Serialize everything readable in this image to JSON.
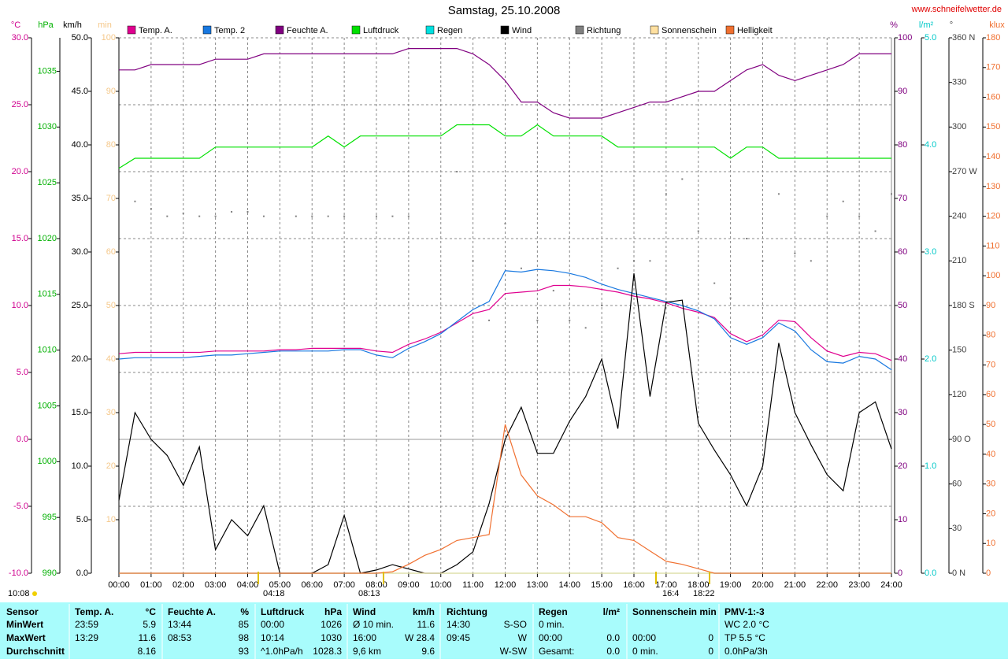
{
  "chart_data": {
    "type": "line",
    "title": "Samstag, 25.10.2008",
    "source": "www.schneifelwetter.de",
    "x": [
      0,
      0.5,
      1,
      1.5,
      2,
      2.5,
      3,
      3.5,
      4,
      4.5,
      5,
      5.5,
      6,
      6.5,
      7,
      7.5,
      8,
      8.5,
      9,
      9.5,
      10,
      10.5,
      11,
      11.5,
      12,
      12.5,
      13,
      13.5,
      14,
      14.5,
      15,
      15.5,
      16,
      16.5,
      17,
      17.5,
      18,
      18.5,
      19,
      19.5,
      20,
      20.5,
      21,
      21.5,
      22,
      22.5,
      23,
      23.5,
      24
    ],
    "xlim": [
      0,
      24
    ],
    "xticks": [
      {
        "value": 0,
        "label": "00:00"
      },
      {
        "value": 1,
        "label": "01:00"
      },
      {
        "value": 2,
        "label": "02:00"
      },
      {
        "value": 3,
        "label": "03:00"
      },
      {
        "value": 4,
        "label": "04:00"
      },
      {
        "value": 5,
        "label": "05:00"
      },
      {
        "value": 6,
        "label": "06:00"
      },
      {
        "value": 7,
        "label": "07:00"
      },
      {
        "value": 8,
        "label": "08:00"
      },
      {
        "value": 9,
        "label": "09:00"
      },
      {
        "value": 10,
        "label": "10:00"
      },
      {
        "value": 11,
        "label": "11:00"
      },
      {
        "value": 12,
        "label": "12:00"
      },
      {
        "value": 13,
        "label": "13:00"
      },
      {
        "value": 14,
        "label": "14:00"
      },
      {
        "value": 15,
        "label": "15:00"
      },
      {
        "value": 16,
        "label": "16:00"
      },
      {
        "value": 17,
        "label": "17:00"
      },
      {
        "value": 18,
        "label": "18:00"
      },
      {
        "value": 19,
        "label": "19:00"
      },
      {
        "value": 20,
        "label": "20:00"
      },
      {
        "value": 21,
        "label": "21:00"
      },
      {
        "value": 22,
        "label": "22:00"
      },
      {
        "value": 23,
        "label": "23:00"
      },
      {
        "value": 24,
        "label": "24:00"
      }
    ],
    "grid": true,
    "axes": [
      {
        "label": "°C",
        "color": "#d0008f",
        "lim": [
          -10,
          30
        ],
        "ticks": [
          {
            "value": -10,
            "label": "-10.0"
          },
          {
            "value": -5,
            "label": "-5.0"
          },
          {
            "value": 0,
            "label": "0.0"
          },
          {
            "value": 5,
            "label": "5.0"
          },
          {
            "value": 10,
            "label": "10.0"
          },
          {
            "value": 15,
            "label": "15.0"
          },
          {
            "value": 20,
            "label": "20.0"
          },
          {
            "value": 25,
            "label": "25.0"
          },
          {
            "value": 30,
            "label": "30.0"
          }
        ]
      },
      {
        "label": "hPa",
        "color": "#00b000",
        "lim": [
          990,
          1038
        ],
        "ticks": [
          990,
          995,
          1000,
          1005,
          1010,
          1015,
          1020,
          1025,
          1030,
          1035
        ]
      },
      {
        "label": "km/h",
        "color": "#000000",
        "lim": [
          0,
          50
        ],
        "ticks": [
          {
            "value": 0,
            "label": "0.0"
          },
          {
            "value": 5,
            "label": "5.0"
          },
          {
            "value": 10,
            "label": "10.0"
          },
          {
            "value": 15,
            "label": "15.0"
          },
          {
            "value": 20,
            "label": "20.0"
          },
          {
            "value": 25,
            "label": "25.0"
          },
          {
            "value": 30,
            "label": "30.0"
          },
          {
            "value": 35,
            "label": "35.0"
          },
          {
            "value": 40,
            "label": "40.0"
          },
          {
            "value": 45,
            "label": "45.0"
          },
          {
            "value": 50,
            "label": "50.0"
          }
        ]
      },
      {
        "label": "min",
        "color": "#f5c88a",
        "lim": [
          0,
          100
        ],
        "ticks": [
          10,
          20,
          30,
          40,
          50,
          60,
          70,
          80,
          90,
          100
        ]
      },
      {
        "label": "%",
        "color": "#800080",
        "lim": [
          0,
          100
        ],
        "ticks": [
          0,
          10,
          20,
          30,
          40,
          50,
          60,
          70,
          80,
          90,
          100
        ]
      },
      {
        "label": "l/m²",
        "color": "#00c8c8",
        "lim": [
          0,
          5
        ],
        "ticks": [
          {
            "value": 0,
            "label": "0.0"
          },
          {
            "value": 1,
            "label": "1.0"
          },
          {
            "value": 2,
            "label": "2.0"
          },
          {
            "value": 3,
            "label": "3.0"
          },
          {
            "value": 4,
            "label": "4.0"
          },
          {
            "value": 5,
            "label": "5.0"
          }
        ]
      },
      {
        "label": "°",
        "color": "#404040",
        "lim": [
          0,
          360
        ],
        "ticks": [
          {
            "value": 0,
            "label": "0   N"
          },
          30,
          60,
          {
            "value": 90,
            "label": "90   O"
          },
          120,
          150,
          {
            "value": 180,
            "label": "180 S"
          },
          210,
          240,
          {
            "value": 270,
            "label": "270 W"
          },
          300,
          330,
          {
            "value": 360,
            "label": "360 N"
          }
        ]
      },
      {
        "label": "klux",
        "color": "#f07030",
        "lim": [
          0,
          180
        ],
        "ticks": [
          0,
          10,
          20,
          30,
          40,
          50,
          60,
          70,
          80,
          90,
          100,
          110,
          120,
          130,
          140,
          150,
          160,
          170,
          180
        ]
      }
    ],
    "series": [
      {
        "name": "Temp. A.",
        "color": "#e0008f",
        "axis": 0,
        "style": "line",
        "values": [
          6.4,
          6.5,
          6.5,
          6.5,
          6.5,
          6.5,
          6.6,
          6.6,
          6.6,
          6.6,
          6.7,
          6.7,
          6.8,
          6.8,
          6.8,
          6.8,
          6.6,
          6.5,
          7.1,
          7.5,
          8.0,
          8.7,
          9.4,
          9.7,
          10.9,
          11.0,
          11.1,
          11.5,
          11.5,
          11.4,
          11.2,
          11.0,
          10.7,
          10.5,
          10.2,
          9.8,
          9.5,
          9.1,
          7.9,
          7.3,
          7.8,
          8.9,
          8.8,
          7.6,
          6.6,
          6.2,
          6.5,
          6.4,
          5.9
        ]
      },
      {
        "name": "Temp. 2",
        "color": "#1878e0",
        "axis": 0,
        "style": "line",
        "values": [
          6.0,
          6.1,
          6.1,
          6.1,
          6.1,
          6.2,
          6.3,
          6.3,
          6.4,
          6.5,
          6.6,
          6.6,
          6.6,
          6.6,
          6.7,
          6.7,
          6.3,
          6.1,
          6.8,
          7.3,
          7.9,
          8.8,
          9.7,
          10.3,
          12.6,
          12.5,
          12.7,
          12.6,
          12.4,
          12.1,
          11.6,
          11.2,
          10.9,
          10.6,
          10.3,
          10.0,
          9.6,
          9.0,
          7.6,
          7.1,
          7.6,
          8.7,
          8.1,
          6.7,
          5.8,
          5.7,
          6.2,
          6.0,
          5.2
        ]
      },
      {
        "name": "Feuchte A.",
        "color": "#800080",
        "axis": 4,
        "style": "line",
        "values": [
          94,
          94,
          95,
          95,
          95,
          95,
          96,
          96,
          96,
          97,
          97,
          97,
          97,
          97,
          97,
          97,
          97,
          97,
          98,
          98,
          98,
          98,
          97,
          95,
          92,
          88,
          88,
          86,
          85,
          85,
          85,
          86,
          87,
          88,
          88,
          89,
          90,
          90,
          92,
          94,
          95,
          93,
          92,
          93,
          94,
          95,
          97,
          97,
          97
        ]
      },
      {
        "name": "Luftdruck",
        "color": "#00e000",
        "axis": 1,
        "style": "line",
        "values": [
          1026.3,
          1027.2,
          1027.2,
          1027.2,
          1027.2,
          1027.2,
          1028.2,
          1028.2,
          1028.2,
          1028.2,
          1028.2,
          1028.2,
          1028.2,
          1029.2,
          1028.2,
          1029.2,
          1029.2,
          1029.2,
          1029.2,
          1029.2,
          1029.2,
          1030.2,
          1030.2,
          1030.2,
          1029.2,
          1029.2,
          1030.2,
          1029.2,
          1029.2,
          1029.2,
          1029.2,
          1028.2,
          1028.2,
          1028.2,
          1028.2,
          1028.2,
          1028.2,
          1028.2,
          1027.2,
          1028.2,
          1028.2,
          1027.2,
          1027.2,
          1027.2,
          1027.2,
          1027.2,
          1027.2,
          1027.2,
          1027.2
        ]
      },
      {
        "name": "Regen",
        "color": "#00e0e0",
        "axis": 5,
        "style": "line",
        "values": [
          0,
          0,
          0,
          0,
          0,
          0,
          0,
          0,
          0,
          0,
          0,
          0,
          0,
          0,
          0,
          0,
          0,
          0,
          0,
          0,
          0,
          0,
          0,
          0,
          0,
          0,
          0,
          0,
          0,
          0,
          0,
          0,
          0,
          0,
          0,
          0,
          0,
          0,
          0,
          0,
          0,
          0,
          0,
          0,
          0,
          0,
          0,
          0,
          0
        ]
      },
      {
        "name": "Wind",
        "color": "#000000",
        "axis": 2,
        "style": "line",
        "values": [
          6.8,
          15.0,
          12.5,
          11.0,
          8.2,
          11.8,
          2.2,
          5.0,
          3.5,
          6.3,
          0,
          0,
          0,
          0.8,
          5.4,
          0,
          0.3,
          0.8,
          0.4,
          0,
          0,
          0.8,
          2.0,
          6.5,
          12.5,
          15.5,
          11.2,
          11.2,
          14.2,
          16.5,
          20.0,
          13.5,
          28.0,
          16.5,
          25.3,
          25.5,
          14.0,
          11.5,
          9.2,
          6.3,
          10.0,
          21.5,
          15.0,
          12.0,
          9.2,
          7.7,
          15.0,
          16.0,
          11.6
        ]
      },
      {
        "name": "Richtung",
        "color": "#808080",
        "axis": 6,
        "style": "dots",
        "values": [
          245,
          250,
          245,
          240,
          242,
          240,
          240,
          243,
          243,
          240,
          null,
          240,
          240,
          240,
          240,
          null,
          240,
          240,
          240,
          null,
          null,
          270,
          210,
          170,
          235,
          205,
          170,
          190,
          170,
          165,
          180,
          205,
          210,
          210,
          255,
          265,
          230,
          195,
          185,
          225,
          210,
          255,
          215,
          210,
          240,
          250,
          240,
          230,
          255
        ]
      },
      {
        "name": "Sonnenschein",
        "color": "#ffe0a0",
        "axis": 3,
        "style": "line",
        "values": [
          0,
          0,
          0,
          0,
          0,
          0,
          0,
          0,
          0,
          0,
          0,
          0,
          0,
          0,
          0,
          0,
          0,
          0,
          0,
          0,
          0,
          0,
          0,
          0,
          0,
          0,
          0,
          0,
          0,
          0,
          0,
          0,
          0,
          0,
          0,
          0,
          0,
          0,
          0,
          0,
          0,
          0,
          0,
          0,
          0,
          0,
          0,
          0,
          0
        ]
      },
      {
        "name": "Helligkeit",
        "color": "#f07030",
        "axis": 7,
        "style": "line",
        "values": [
          0,
          0,
          0,
          0,
          0,
          0,
          0,
          0,
          0,
          0,
          0,
          0,
          0,
          0,
          0,
          0,
          0,
          0.5,
          3,
          6,
          8,
          11,
          12,
          13,
          50,
          33,
          26,
          23,
          19,
          19,
          17,
          12,
          11,
          7.5,
          4,
          3,
          1.5,
          0,
          0,
          0,
          0,
          0,
          0,
          0,
          0,
          0,
          0,
          0,
          0
        ]
      }
    ],
    "annotations": [
      "10:08",
      "04:18",
      "08:13",
      "16:4",
      "18:22"
    ]
  },
  "stats_table": {
    "header": [
      "Sensor",
      "Temp. A.",
      "°C",
      "Feuchte A.",
      "%",
      "Luftdruck",
      "hPa",
      "Wind",
      "km/h",
      "Richtung",
      null,
      "Regen",
      "l/m²",
      "Sonnenschein min",
      null,
      "PMV-1:-3"
    ],
    "rows": [
      [
        "MinWert",
        "23:59",
        "5.9",
        "13:44",
        "85",
        "00:00",
        "1026",
        "Ø 10 min.",
        "11.6",
        "14:30",
        "S-SO",
        "0 min.",
        null,
        null,
        null,
        "WC 2.0 °C"
      ],
      [
        "MaxWert",
        "13:29",
        "11.6",
        "08:53",
        "98",
        "10:14",
        "1030",
        "16:00",
        "W 28.4",
        "09:45",
        "W",
        "00:00",
        "0.0",
        "00:00",
        "0",
        "TP 5.5 °C"
      ],
      [
        "Durchschnitt",
        null,
        "8.16",
        null,
        "93",
        "^1.0hPa/h",
        "1028.3",
        "9,6 km",
        "9.6",
        null,
        "W-SW",
        "Gesamt:",
        "0.0",
        "0 min.",
        "0",
        "0.0hPa/3h"
      ]
    ]
  }
}
